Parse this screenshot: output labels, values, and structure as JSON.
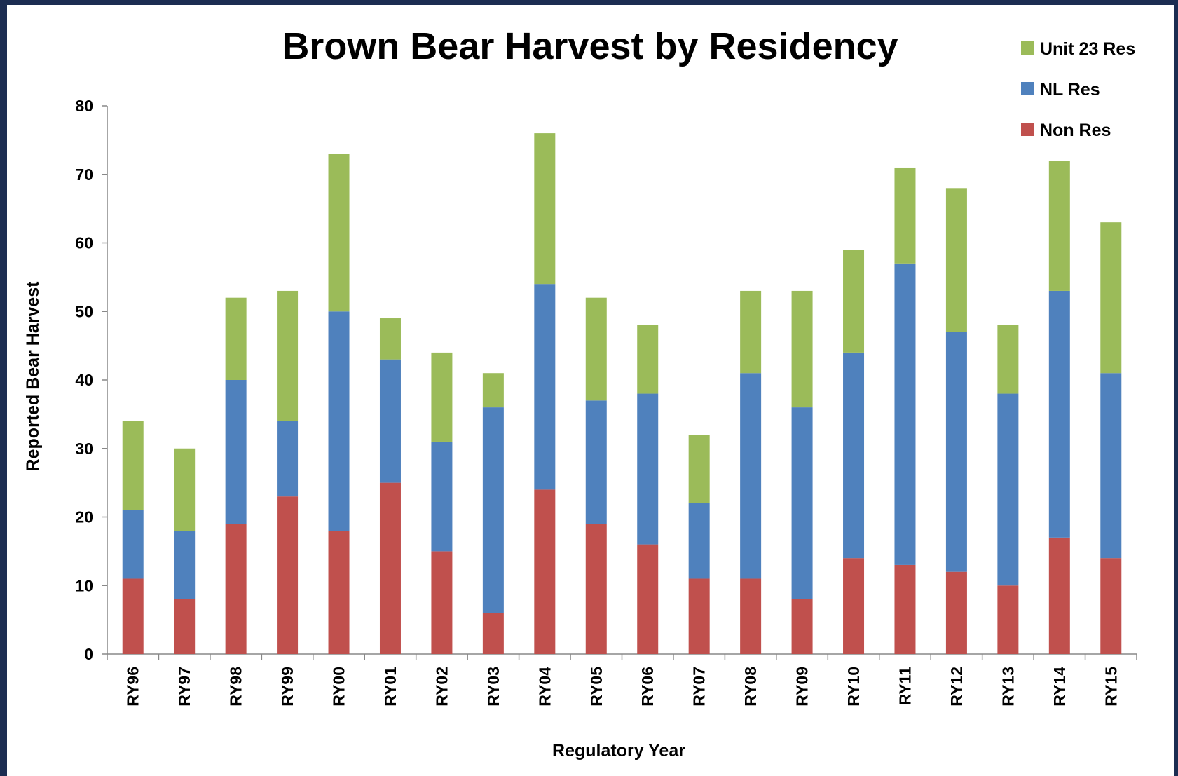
{
  "chart_data": {
    "type": "bar",
    "stacked": true,
    "title": "Brown Bear Harvest by Residency",
    "xlabel": "Regulatory Year",
    "ylabel": "Reported Bear Harvest",
    "ylim": [
      0,
      80
    ],
    "yticks": [
      0,
      10,
      20,
      30,
      40,
      50,
      60,
      70,
      80
    ],
    "grid": false,
    "legend_position": "top-right",
    "categories": [
      "RY96",
      "RY97",
      "RY98",
      "RY99",
      "RY00",
      "RY01",
      "RY02",
      "RY03",
      "RY04",
      "RY05",
      "RY06",
      "RY07",
      "RY08",
      "RY09",
      "RY10",
      "RY11",
      "RY12",
      "RY13",
      "RY14",
      "RY15"
    ],
    "series": [
      {
        "name": "Non Res",
        "color": "#c0504d",
        "values": [
          11,
          8,
          19,
          23,
          18,
          25,
          15,
          6,
          24,
          19,
          16,
          11,
          11,
          8,
          14,
          13,
          12,
          10,
          17,
          14
        ]
      },
      {
        "name": "NL Res",
        "color": "#4f81bd",
        "values": [
          10,
          10,
          21,
          11,
          32,
          18,
          16,
          30,
          30,
          18,
          22,
          11,
          30,
          28,
          30,
          44,
          35,
          28,
          36,
          27
        ]
      },
      {
        "name": "Unit 23 Res",
        "color": "#9bbb59",
        "values": [
          13,
          12,
          12,
          19,
          23,
          6,
          13,
          5,
          22,
          15,
          10,
          10,
          12,
          17,
          15,
          14,
          21,
          10,
          19,
          22
        ]
      }
    ],
    "legend_order": [
      "Unit 23 Res",
      "NL Res",
      "Non Res"
    ]
  }
}
